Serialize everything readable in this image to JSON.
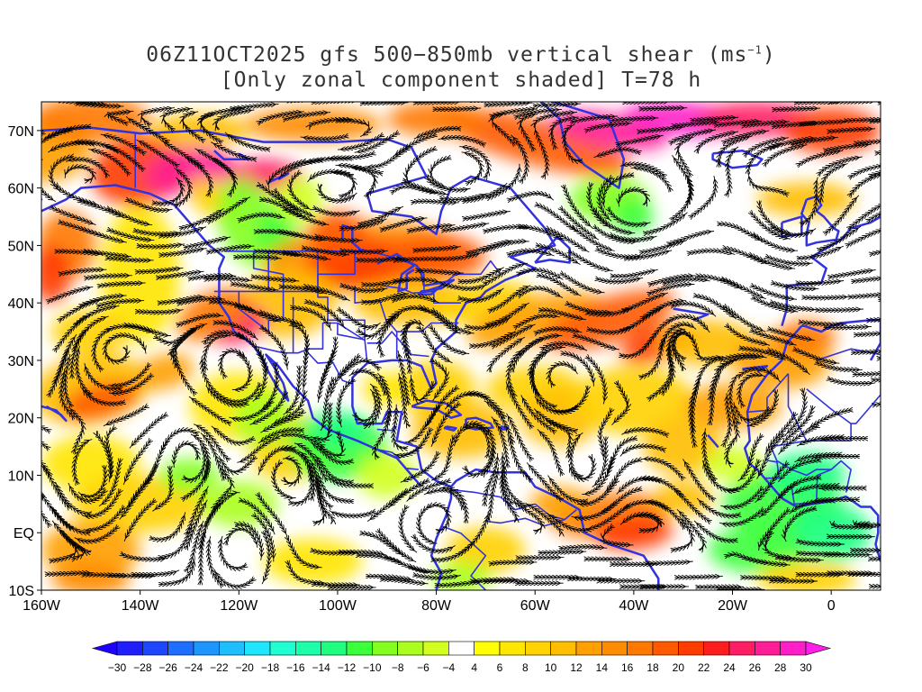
{
  "title": {
    "line1_prefix": "06Z11OCT2025 gfs 500−850mb vertical shear (ms",
    "line1_sup": "−1",
    "line1_suffix": ")",
    "line2": "[Only zonal component shaded] T=78 h"
  },
  "map": {
    "lon_range": [
      -160,
      10
    ],
    "lat_range": [
      -10,
      75
    ],
    "lat_labels": [
      {
        "text": "70N",
        "lat": 70
      },
      {
        "text": "60N",
        "lat": 60
      },
      {
        "text": "50N",
        "lat": 50
      },
      {
        "text": "40N",
        "lat": 40
      },
      {
        "text": "30N",
        "lat": 30
      },
      {
        "text": "20N",
        "lat": 20
      },
      {
        "text": "10N",
        "lat": 10
      },
      {
        "text": "EQ",
        "lat": 0
      },
      {
        "text": "10S",
        "lat": -10
      }
    ],
    "lon_labels": [
      {
        "text": "160W",
        "lon": -160
      },
      {
        "text": "140W",
        "lon": -140
      },
      {
        "text": "120W",
        "lon": -120
      },
      {
        "text": "100W",
        "lon": -100
      },
      {
        "text": "80W",
        "lon": -80
      },
      {
        "text": "60W",
        "lon": -60
      },
      {
        "text": "40W",
        "lon": -40
      },
      {
        "text": "20W",
        "lon": -20
      },
      {
        "text": "0",
        "lon": 0
      }
    ],
    "coastline_color": "#3333dd",
    "streamline_color": "#000000"
  },
  "colorbar": {
    "labels": [
      "−30",
      "−28",
      "−26",
      "−24",
      "−22",
      "−20",
      "−18",
      "−16",
      "−14",
      "−12",
      "−10",
      "−8",
      "−6",
      "−4",
      "4",
      "6",
      "8",
      "10",
      "12",
      "14",
      "16",
      "18",
      "20",
      "22",
      "24",
      "26",
      "28",
      "30"
    ],
    "colors": [
      "#1e1eff",
      "#1e46ff",
      "#1e6eff",
      "#1e96ff",
      "#1ebeff",
      "#1ee6ff",
      "#1effd2",
      "#1effaa",
      "#1eff82",
      "#3cff3c",
      "#82ff1e",
      "#aaff1e",
      "#d2ff1e",
      "#ffffff",
      "#ffff00",
      "#ffe600",
      "#ffd200",
      "#ffbe00",
      "#ffa000",
      "#ff8c00",
      "#ff7800",
      "#ff5a00",
      "#ff3c00",
      "#ff1e1e",
      "#ff1e64",
      "#ff1e96",
      "#ff1ec8"
    ],
    "under_color": "#1e00ff",
    "over_color": "#ff1ee6"
  }
}
